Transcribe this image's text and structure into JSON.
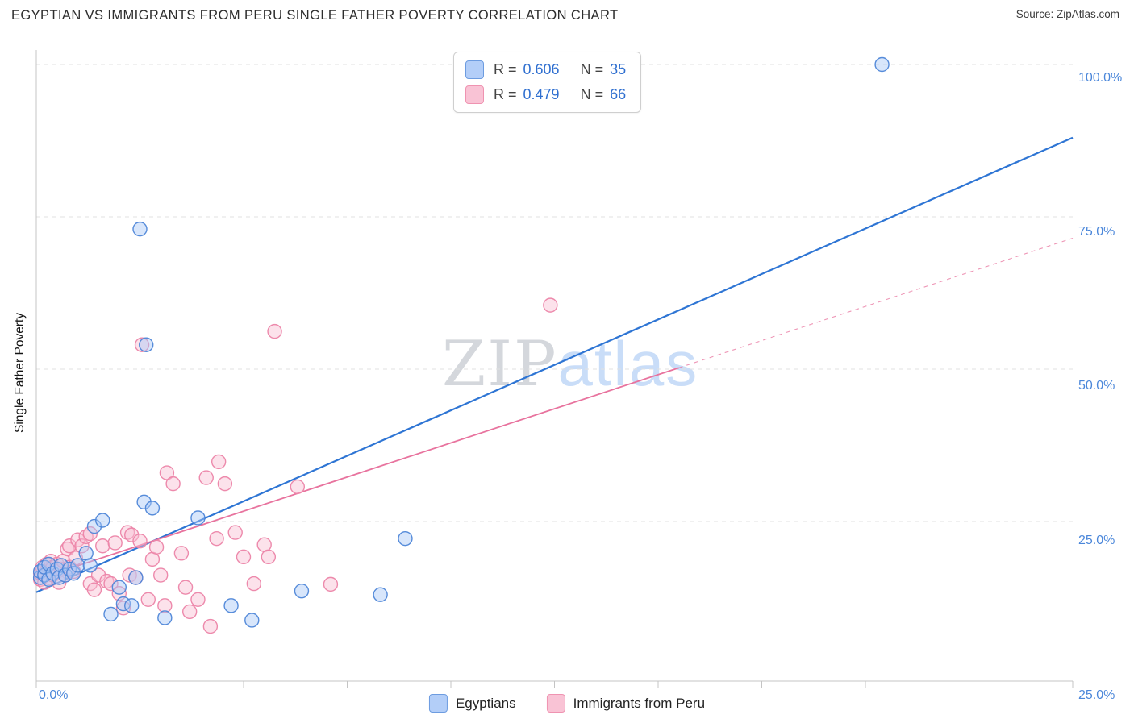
{
  "header": {
    "title": "EGYPTIAN VS IMMIGRANTS FROM PERU SINGLE FATHER POVERTY CORRELATION CHART",
    "source": "Source: ZipAtlas.com"
  },
  "watermark": {
    "part1": "ZIP",
    "part2": "atlas"
  },
  "stats_box": {
    "rows": [
      {
        "series": "Egyptians",
        "r_label": "R =",
        "r_value": "0.606",
        "n_label": "N =",
        "n_value": "35"
      },
      {
        "series": "Immigrants from Peru",
        "r_label": "R =",
        "r_value": "0.479",
        "n_label": "N =",
        "n_value": "66"
      }
    ]
  },
  "axes": {
    "y_label": "Single Father Poverty",
    "y_ticks": [
      "100.0%",
      "75.0%",
      "50.0%",
      "25.0%"
    ],
    "x_tick_left": "0.0%",
    "x_tick_right": "25.0%"
  },
  "bottom_legend": {
    "items": [
      {
        "label": "Egyptians"
      },
      {
        "label": "Immigrants from Peru"
      }
    ]
  },
  "chart_data": {
    "type": "scatter",
    "title": "Egyptian vs Immigrants from Peru Single Father Poverty Correlation Chart",
    "xlabel": "",
    "ylabel": "Single Father Poverty",
    "xlim": [
      0,
      0.25
    ],
    "ylim": [
      0,
      1.05
    ],
    "x_axis_format": "percent",
    "y_axis_format": "percent",
    "gridlines_y": [
      0.25,
      0.5,
      0.75,
      1.0
    ],
    "x_tick_count": 11,
    "series": [
      {
        "name": "Egyptians",
        "r": 0.606,
        "n": 35,
        "fill": "#a9c7f7",
        "stroke": "#4e86d8",
        "points": [
          [
            0.001,
            0.158
          ],
          [
            0.001,
            0.168
          ],
          [
            0.002,
            0.162
          ],
          [
            0.002,
            0.175
          ],
          [
            0.003,
            0.155
          ],
          [
            0.003,
            0.18
          ],
          [
            0.004,
            0.165
          ],
          [
            0.005,
            0.172
          ],
          [
            0.0055,
            0.158
          ],
          [
            0.006,
            0.178
          ],
          [
            0.007,
            0.162
          ],
          [
            0.008,
            0.172
          ],
          [
            0.009,
            0.165
          ],
          [
            0.01,
            0.178
          ],
          [
            0.012,
            0.198
          ],
          [
            0.013,
            0.178
          ],
          [
            0.014,
            0.242
          ],
          [
            0.016,
            0.252
          ],
          [
            0.018,
            0.098
          ],
          [
            0.02,
            0.142
          ],
          [
            0.021,
            0.115
          ],
          [
            0.023,
            0.112
          ],
          [
            0.024,
            0.158
          ],
          [
            0.025,
            0.73
          ],
          [
            0.026,
            0.282
          ],
          [
            0.0265,
            0.54
          ],
          [
            0.028,
            0.272
          ],
          [
            0.031,
            0.092
          ],
          [
            0.039,
            0.256
          ],
          [
            0.047,
            0.112
          ],
          [
            0.052,
            0.088
          ],
          [
            0.064,
            0.136
          ],
          [
            0.083,
            0.13
          ],
          [
            0.089,
            0.222
          ],
          [
            0.204,
            1.0
          ]
        ]
      },
      {
        "name": "Immigrants from Peru",
        "r": 0.479,
        "n": 66,
        "fill": "#f9bed2",
        "stroke": "#ec84a8",
        "points": [
          [
            0.001,
            0.155
          ],
          [
            0.001,
            0.165
          ],
          [
            0.0015,
            0.175
          ],
          [
            0.002,
            0.15
          ],
          [
            0.002,
            0.165
          ],
          [
            0.0025,
            0.18
          ],
          [
            0.003,
            0.158
          ],
          [
            0.003,
            0.172
          ],
          [
            0.0035,
            0.185
          ],
          [
            0.004,
            0.162
          ],
          [
            0.004,
            0.175
          ],
          [
            0.005,
            0.168
          ],
          [
            0.005,
            0.18
          ],
          [
            0.0055,
            0.15
          ],
          [
            0.006,
            0.172
          ],
          [
            0.0065,
            0.185
          ],
          [
            0.007,
            0.162
          ],
          [
            0.0075,
            0.205
          ],
          [
            0.008,
            0.175
          ],
          [
            0.008,
            0.21
          ],
          [
            0.009,
            0.168
          ],
          [
            0.0095,
            0.19
          ],
          [
            0.01,
            0.22
          ],
          [
            0.011,
            0.21
          ],
          [
            0.012,
            0.225
          ],
          [
            0.013,
            0.23
          ],
          [
            0.013,
            0.148
          ],
          [
            0.014,
            0.138
          ],
          [
            0.015,
            0.162
          ],
          [
            0.016,
            0.21
          ],
          [
            0.017,
            0.152
          ],
          [
            0.018,
            0.148
          ],
          [
            0.019,
            0.215
          ],
          [
            0.02,
            0.132
          ],
          [
            0.021,
            0.108
          ],
          [
            0.022,
            0.232
          ],
          [
            0.0225,
            0.162
          ],
          [
            0.023,
            0.228
          ],
          [
            0.024,
            0.158
          ],
          [
            0.025,
            0.218
          ],
          [
            0.0255,
            0.54
          ],
          [
            0.027,
            0.122
          ],
          [
            0.028,
            0.188
          ],
          [
            0.029,
            0.208
          ],
          [
            0.03,
            0.162
          ],
          [
            0.031,
            0.112
          ],
          [
            0.0315,
            0.33
          ],
          [
            0.033,
            0.312
          ],
          [
            0.035,
            0.198
          ],
          [
            0.036,
            0.142
          ],
          [
            0.037,
            0.102
          ],
          [
            0.039,
            0.122
          ],
          [
            0.041,
            0.322
          ],
          [
            0.042,
            0.078
          ],
          [
            0.0435,
            0.222
          ],
          [
            0.044,
            0.348
          ],
          [
            0.0455,
            0.312
          ],
          [
            0.048,
            0.232
          ],
          [
            0.05,
            0.192
          ],
          [
            0.0525,
            0.148
          ],
          [
            0.055,
            0.212
          ],
          [
            0.056,
            0.192
          ],
          [
            0.0575,
            0.562
          ],
          [
            0.063,
            0.307
          ],
          [
            0.071,
            0.147
          ],
          [
            0.124,
            0.605
          ]
        ]
      }
    ],
    "trend_lines": [
      {
        "series": "Egyptians",
        "color": "#2e75d4",
        "x_start": 0,
        "y_start": 0.134,
        "x_end": 0.25,
        "y_end": 0.88,
        "style": "solid",
        "width": 2.2
      },
      {
        "series": "Immigrants from Peru",
        "color": "#e8739e",
        "x_start": 0,
        "y_start": 0.155,
        "x_end": 0.25,
        "y_end": 0.715,
        "style": "solid-then-dashed",
        "solid_until_x": 0.155,
        "width": 1.8
      }
    ],
    "legend_position": "bottom-center"
  }
}
